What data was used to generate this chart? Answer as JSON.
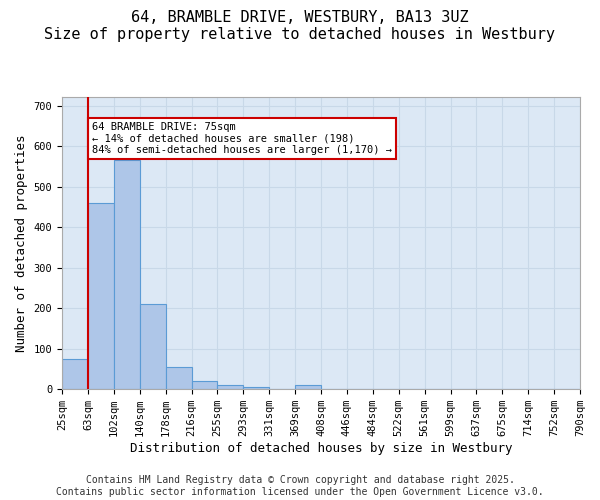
{
  "title_line1": "64, BRAMBLE DRIVE, WESTBURY, BA13 3UZ",
  "title_line2": "Size of property relative to detached houses in Westbury",
  "xlabel": "Distribution of detached houses by size in Westbury",
  "ylabel": "Number of detached properties",
  "bin_labels": [
    "25sqm",
    "63sqm",
    "102sqm",
    "140sqm",
    "178sqm",
    "216sqm",
    "255sqm",
    "293sqm",
    "331sqm",
    "369sqm",
    "408sqm",
    "446sqm",
    "484sqm",
    "522sqm",
    "561sqm",
    "599sqm",
    "637sqm",
    "675sqm",
    "714sqm",
    "752sqm",
    "790sqm"
  ],
  "bar_values": [
    75,
    460,
    565,
    210,
    55,
    20,
    10,
    5,
    0,
    10,
    0,
    0,
    0,
    0,
    0,
    0,
    0,
    0,
    0,
    0
  ],
  "bar_color": "#aec6e8",
  "bar_edge_color": "#5b9bd5",
  "grid_color": "#c8d8e8",
  "background_color": "#dce8f5",
  "property_line_x": 1,
  "property_line_color": "#cc0000",
  "annotation_text": "64 BRAMBLE DRIVE: 75sqm\n← 14% of detached houses are smaller (198)\n84% of semi-detached houses are larger (1,170) →",
  "annotation_box_color": "#cc0000",
  "ylim": [
    0,
    720
  ],
  "yticks": [
    0,
    100,
    200,
    300,
    400,
    500,
    600,
    700
  ],
  "footer_line1": "Contains HM Land Registry data © Crown copyright and database right 2025.",
  "footer_line2": "Contains public sector information licensed under the Open Government Licence v3.0.",
  "title_fontsize": 11,
  "axis_label_fontsize": 9,
  "tick_fontsize": 7.5,
  "footer_fontsize": 7
}
